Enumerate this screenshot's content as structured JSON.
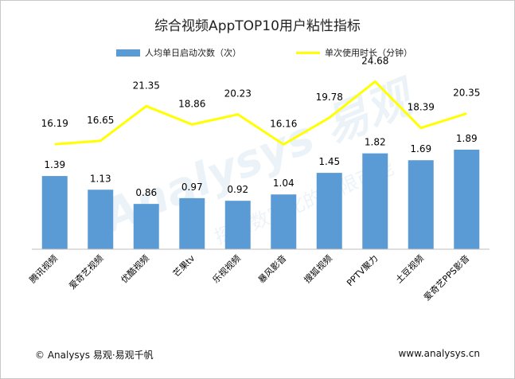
{
  "chart_data": {
    "type": "bar",
    "title": "综合视频AppTOP10用户粘性指标",
    "categories": [
      "腾讯视频",
      "爱奇艺视频",
      "优酷视频",
      "芒果tv",
      "乐视视频",
      "暴风影音",
      "搜狐视频",
      "PPTV聚力",
      "土豆视频",
      "爱奇艺PPS影音"
    ],
    "series": [
      {
        "name": "人均单日启动次数（次）",
        "type": "bar",
        "color": "#5b9bd5",
        "values": [
          1.39,
          1.13,
          0.86,
          0.97,
          0.92,
          1.04,
          1.45,
          1.82,
          1.69,
          1.89
        ],
        "labels": [
          "1.39",
          "1.13",
          "0.86",
          "0.97",
          "0.92",
          "1.04",
          "1.45",
          "1.82",
          "1.69",
          "1.89"
        ]
      },
      {
        "name": "单次使用时长（分钟）",
        "type": "line",
        "color": "#ffff00",
        "values": [
          16.19,
          16.65,
          21.35,
          18.86,
          20.23,
          16.16,
          19.78,
          24.68,
          18.39,
          20.35
        ],
        "labels": [
          "16.19",
          "16.65",
          "21.35",
          "18.86",
          "20.23",
          "16.16",
          "19.78",
          "24.68",
          "18.39",
          "20.35"
        ]
      }
    ],
    "xlabel": "",
    "ylabel": "",
    "bar_ylim": [
      0,
      2.0
    ],
    "line_ylim": [
      0,
      25
    ],
    "grid": false,
    "legend": "top"
  },
  "footer": {
    "source": "© Analysys 易观·易观千帆",
    "url": "www.analysys.cn"
  },
  "watermark": {
    "brand": "Analysys 易观",
    "slogan": "探索数字化的无限可能"
  }
}
